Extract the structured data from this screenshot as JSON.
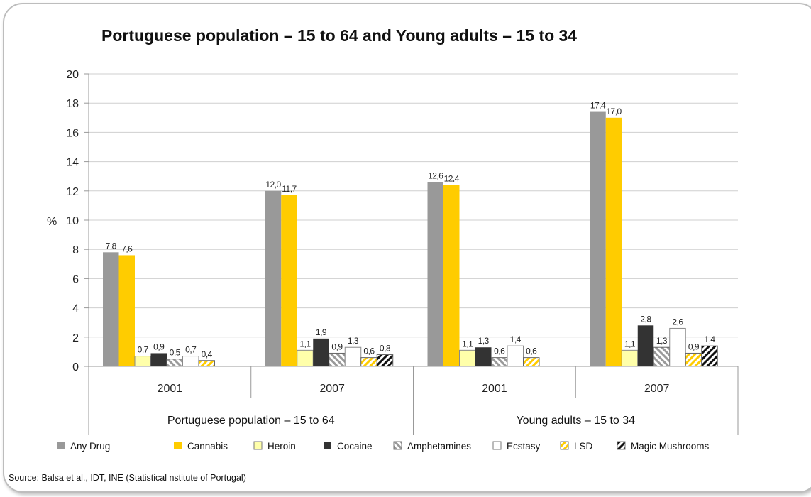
{
  "chart_data": {
    "type": "bar",
    "title": "Portuguese population – 15 to 64 and Young adults – 15 to 34",
    "ylabel": "%",
    "ylim": [
      0,
      20
    ],
    "yticks": [
      0,
      2,
      4,
      6,
      8,
      10,
      12,
      14,
      16,
      18,
      20
    ],
    "grid": true,
    "groups": [
      {
        "label": "Portuguese population – 15 to 64",
        "years": [
          "2001",
          "2007"
        ]
      },
      {
        "label": "Young adults – 15 to 34",
        "years": [
          "2001",
          "2007"
        ]
      }
    ],
    "categories": [
      "2001",
      "2007",
      "2001",
      "2007"
    ],
    "series": [
      {
        "name": "Any Drug",
        "color": "#999999",
        "pattern": "solid",
        "values": [
          7.8,
          12.0,
          12.6,
          17.4
        ],
        "labels": [
          "7,8",
          "12,0",
          "12,6",
          "17,4"
        ]
      },
      {
        "name": "Cannabis",
        "color": "#ffcc00",
        "pattern": "solid",
        "values": [
          7.6,
          11.7,
          12.4,
          17.0
        ],
        "labels": [
          "7,6",
          "11,7",
          "12,4",
          "17,0"
        ]
      },
      {
        "name": "Heroin",
        "color": "#ffffaa",
        "pattern": "solid",
        "values": [
          0.7,
          1.1,
          1.1,
          1.1
        ],
        "labels": [
          "0,7",
          "1,1",
          "1,1",
          "1,1"
        ]
      },
      {
        "name": "Cocaine",
        "color": "#333333",
        "pattern": "solid",
        "values": [
          0.9,
          1.9,
          1.3,
          2.8
        ],
        "labels": [
          "0,9",
          "1,9",
          "1,3",
          "2,8"
        ]
      },
      {
        "name": "Amphetamines",
        "color": "#999999",
        "pattern": "hatch-light",
        "values": [
          0.5,
          0.9,
          0.6,
          1.3
        ],
        "labels": [
          "0,5",
          "0,9",
          "0,6",
          "1,3"
        ]
      },
      {
        "name": "Ecstasy",
        "color": "#ffffff",
        "pattern": "solid",
        "values": [
          0.7,
          1.3,
          1.4,
          2.6
        ],
        "labels": [
          "0,7",
          "1,3",
          "1,4",
          "2,6"
        ]
      },
      {
        "name": "LSD",
        "color": "#ffcc00",
        "pattern": "hatch-yellow",
        "values": [
          0.4,
          0.6,
          0.6,
          0.9
        ],
        "labels": [
          "0,4",
          "0,6",
          "0,6",
          "0,9"
        ]
      },
      {
        "name": "Magic Mushrooms",
        "color": "#000000",
        "pattern": "hatch-dark",
        "values": [
          null,
          0.8,
          null,
          1.4
        ],
        "labels": [
          "",
          "0,8",
          "",
          "1,4"
        ]
      }
    ],
    "legend": "bottom"
  },
  "source": "Source: Balsa et al., IDT, INE (Statistical nstitute of Portugal)"
}
